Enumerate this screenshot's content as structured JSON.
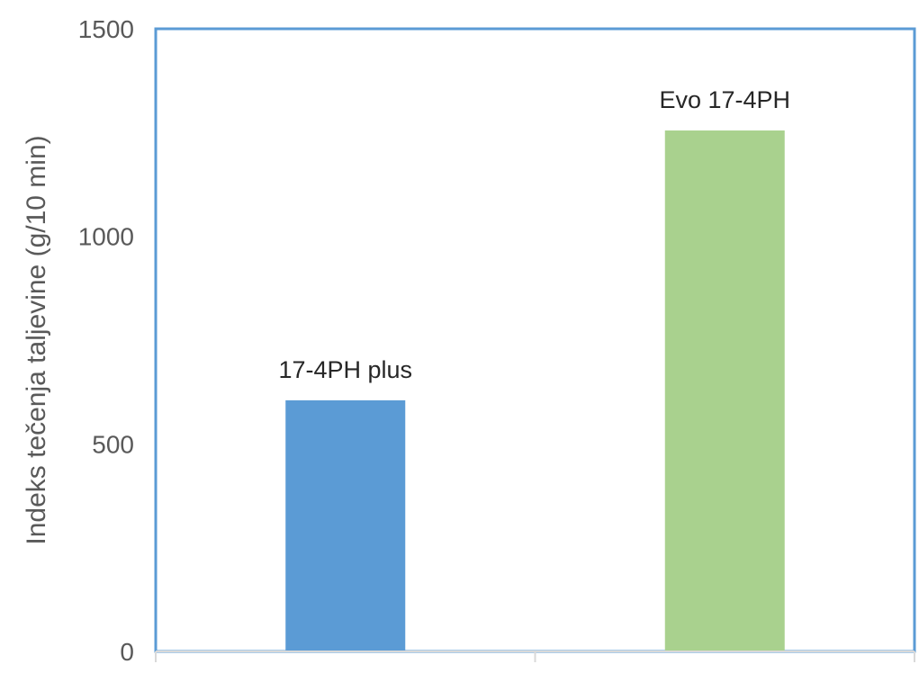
{
  "chart_data": {
    "type": "bar",
    "categories": [
      "17-4PH plus",
      "Evo 17-4PH"
    ],
    "values": [
      605,
      1255
    ],
    "data_labels": [
      "17-4PH plus",
      "Evo 17-4PH"
    ],
    "colors": [
      "#5b9bd5",
      "#a9d18e"
    ],
    "frame_color": "#5b9bd5",
    "axis_color": "#d9d9d9",
    "title": "",
    "xlabel": "",
    "ylabel": "Indeks tečenja taljevine (g/10 min)",
    "ylim": [
      0,
      1500
    ],
    "yticks": [
      0,
      500,
      1000,
      1500
    ],
    "grid": false,
    "legend": "none"
  }
}
